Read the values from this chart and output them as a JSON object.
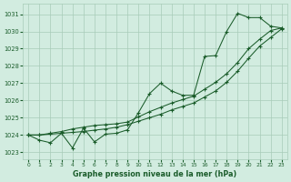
{
  "title": "Graphe pression niveau de la mer (hPa)",
  "bg_color": "#d2ece0",
  "grid_color": "#a8ccb8",
  "line_color": "#1a5c2a",
  "xlim": [
    -0.5,
    23.5
  ],
  "ylim": [
    1022.6,
    1031.6
  ],
  "yticks": [
    1023,
    1024,
    1025,
    1026,
    1027,
    1028,
    1029,
    1030,
    1031
  ],
  "xticks": [
    0,
    1,
    2,
    3,
    4,
    5,
    6,
    7,
    8,
    9,
    10,
    11,
    12,
    13,
    14,
    15,
    16,
    17,
    18,
    19,
    20,
    21,
    22,
    23
  ],
  "series1": {
    "x": [
      0,
      1,
      2,
      3,
      4,
      5,
      6,
      7,
      8,
      9,
      10,
      11,
      12,
      13,
      14,
      15,
      16,
      17,
      18,
      19,
      20,
      21,
      22,
      23
    ],
    "y": [
      1024.0,
      1023.7,
      1023.55,
      1024.1,
      1023.25,
      1024.4,
      1023.6,
      1024.05,
      1024.1,
      1024.3,
      1025.3,
      1026.4,
      1027.0,
      1026.55,
      1026.3,
      1026.3,
      1028.55,
      1028.6,
      1030.0,
      1031.05,
      1030.8,
      1030.8,
      1030.3,
      1030.2
    ]
  },
  "series2": {
    "x": [
      0,
      1,
      2,
      3,
      4,
      5,
      6,
      7,
      8,
      9,
      10,
      11,
      12,
      13,
      14,
      15,
      16,
      17,
      18,
      19,
      20,
      21,
      22,
      23
    ],
    "y": [
      1024.0,
      1024.0,
      1024.1,
      1024.2,
      1024.35,
      1024.45,
      1024.55,
      1024.6,
      1024.65,
      1024.75,
      1025.05,
      1025.35,
      1025.6,
      1025.85,
      1026.05,
      1026.25,
      1026.65,
      1027.05,
      1027.55,
      1028.2,
      1029.0,
      1029.55,
      1030.05,
      1030.2
    ]
  },
  "series3": {
    "x": [
      0,
      1,
      2,
      3,
      4,
      5,
      6,
      7,
      8,
      9,
      10,
      11,
      12,
      13,
      14,
      15,
      16,
      17,
      18,
      19,
      20,
      21,
      22,
      23
    ],
    "y": [
      1024.0,
      1024.0,
      1024.05,
      1024.1,
      1024.15,
      1024.2,
      1024.28,
      1024.35,
      1024.45,
      1024.6,
      1024.8,
      1025.0,
      1025.2,
      1025.45,
      1025.65,
      1025.85,
      1026.2,
      1026.55,
      1027.05,
      1027.7,
      1028.45,
      1029.15,
      1029.65,
      1030.15
    ]
  }
}
